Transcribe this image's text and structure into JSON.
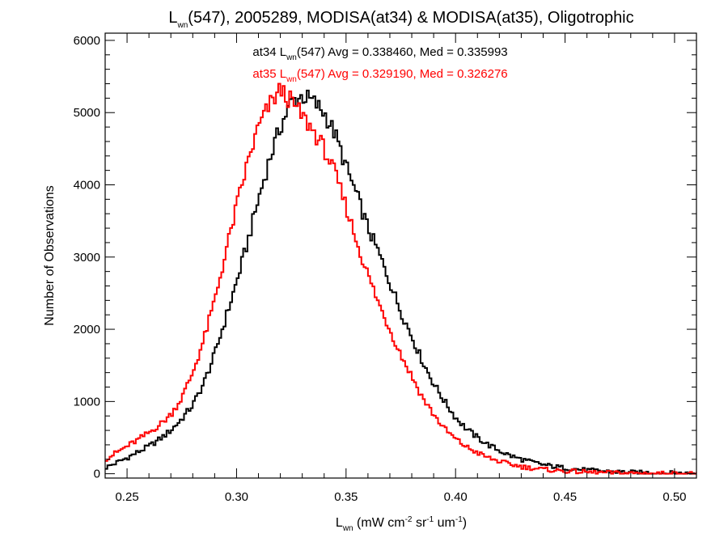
{
  "chart_data": {
    "type": "line",
    "title": {
      "main": "L",
      "sub": "wn",
      "rest": "(547), 2005289, MODISA(at34) & MODISA(at35), Oligotrophic"
    },
    "xlabel": {
      "main": "L",
      "sub": "wn",
      "rest": " (mW cm",
      "sup1": "-2",
      "mid": " sr",
      "sup2": "-1",
      "end": " um",
      "sup3": "-1",
      "close": ")"
    },
    "ylabel": "Number of Observations",
    "xlim": [
      0.24,
      0.51
    ],
    "ylim": [
      -60,
      6100
    ],
    "xticks": [
      0.25,
      0.3,
      0.35,
      0.4,
      0.45,
      0.5
    ],
    "xtick_labels": [
      "0.25",
      "0.30",
      "0.35",
      "0.40",
      "0.45",
      "0.50"
    ],
    "yticks": [
      0,
      1000,
      2000,
      3000,
      4000,
      5000,
      6000
    ],
    "ytick_labels": [
      "0",
      "1000",
      "2000",
      "3000",
      "4000",
      "5000",
      "6000"
    ],
    "step": true,
    "grid": false,
    "series": [
      {
        "name": "at34",
        "color": "#000000",
        "annotation": {
          "pre": "at34 L",
          "sub": "wn",
          "post": "(547) Avg = 0.338460, Med = 0.335993"
        },
        "points": [
          [
            0.24,
            80
          ],
          [
            0.245,
            150
          ],
          [
            0.25,
            220
          ],
          [
            0.255,
            300
          ],
          [
            0.26,
            380
          ],
          [
            0.265,
            480
          ],
          [
            0.27,
            600
          ],
          [
            0.275,
            760
          ],
          [
            0.28,
            950
          ],
          [
            0.285,
            1250
          ],
          [
            0.29,
            1650
          ],
          [
            0.295,
            2150
          ],
          [
            0.3,
            2650
          ],
          [
            0.305,
            3200
          ],
          [
            0.31,
            3800
          ],
          [
            0.315,
            4350
          ],
          [
            0.32,
            4800
          ],
          [
            0.325,
            5150
          ],
          [
            0.33,
            5230
          ],
          [
            0.335,
            5150
          ],
          [
            0.34,
            5000
          ],
          [
            0.345,
            4700
          ],
          [
            0.35,
            4250
          ],
          [
            0.355,
            3850
          ],
          [
            0.36,
            3400
          ],
          [
            0.365,
            3050
          ],
          [
            0.37,
            2650
          ],
          [
            0.375,
            2250
          ],
          [
            0.38,
            1900
          ],
          [
            0.385,
            1550
          ],
          [
            0.39,
            1250
          ],
          [
            0.395,
            1000
          ],
          [
            0.4,
            780
          ],
          [
            0.405,
            620
          ],
          [
            0.41,
            500
          ],
          [
            0.415,
            400
          ],
          [
            0.42,
            320
          ],
          [
            0.425,
            250
          ],
          [
            0.43,
            200
          ],
          [
            0.435,
            160
          ],
          [
            0.44,
            125
          ],
          [
            0.445,
            100
          ],
          [
            0.45,
            80
          ],
          [
            0.455,
            65
          ],
          [
            0.46,
            50
          ],
          [
            0.465,
            40
          ],
          [
            0.47,
            32
          ],
          [
            0.475,
            25
          ],
          [
            0.48,
            20
          ],
          [
            0.485,
            16
          ],
          [
            0.49,
            13
          ],
          [
            0.495,
            10
          ],
          [
            0.5,
            8
          ],
          [
            0.505,
            6
          ],
          [
            0.51,
            5
          ]
        ]
      },
      {
        "name": "at35",
        "color": "#ff0000",
        "annotation": {
          "pre": "at35 L",
          "sub": "wn",
          "post": "(547) Avg = 0.329190, Med = 0.326276"
        },
        "points": [
          [
            0.24,
            200
          ],
          [
            0.245,
            290
          ],
          [
            0.25,
            380
          ],
          [
            0.255,
            470
          ],
          [
            0.26,
            570
          ],
          [
            0.265,
            680
          ],
          [
            0.27,
            820
          ],
          [
            0.275,
            1050
          ],
          [
            0.28,
            1400
          ],
          [
            0.285,
            1850
          ],
          [
            0.29,
            2400
          ],
          [
            0.295,
            3050
          ],
          [
            0.3,
            3700
          ],
          [
            0.305,
            4300
          ],
          [
            0.31,
            4800
          ],
          [
            0.315,
            5100
          ],
          [
            0.32,
            5320
          ],
          [
            0.325,
            5150
          ],
          [
            0.33,
            4950
          ],
          [
            0.335,
            4750
          ],
          [
            0.34,
            4500
          ],
          [
            0.345,
            4150
          ],
          [
            0.35,
            3700
          ],
          [
            0.355,
            3200
          ],
          [
            0.36,
            2750
          ],
          [
            0.365,
            2350
          ],
          [
            0.37,
            2000
          ],
          [
            0.375,
            1650
          ],
          [
            0.38,
            1350
          ],
          [
            0.385,
            1050
          ],
          [
            0.39,
            820
          ],
          [
            0.395,
            620
          ],
          [
            0.4,
            480
          ],
          [
            0.405,
            370
          ],
          [
            0.41,
            290
          ],
          [
            0.415,
            220
          ],
          [
            0.42,
            170
          ],
          [
            0.425,
            130
          ],
          [
            0.43,
            100
          ],
          [
            0.435,
            78
          ],
          [
            0.44,
            60
          ],
          [
            0.445,
            47
          ],
          [
            0.45,
            37
          ],
          [
            0.455,
            29
          ],
          [
            0.46,
            22
          ],
          [
            0.465,
            17
          ],
          [
            0.47,
            13
          ],
          [
            0.475,
            10
          ],
          [
            0.48,
            8
          ],
          [
            0.485,
            6
          ],
          [
            0.49,
            5
          ],
          [
            0.495,
            4
          ],
          [
            0.5,
            3
          ],
          [
            0.505,
            2
          ],
          [
            0.51,
            2
          ]
        ]
      }
    ]
  }
}
